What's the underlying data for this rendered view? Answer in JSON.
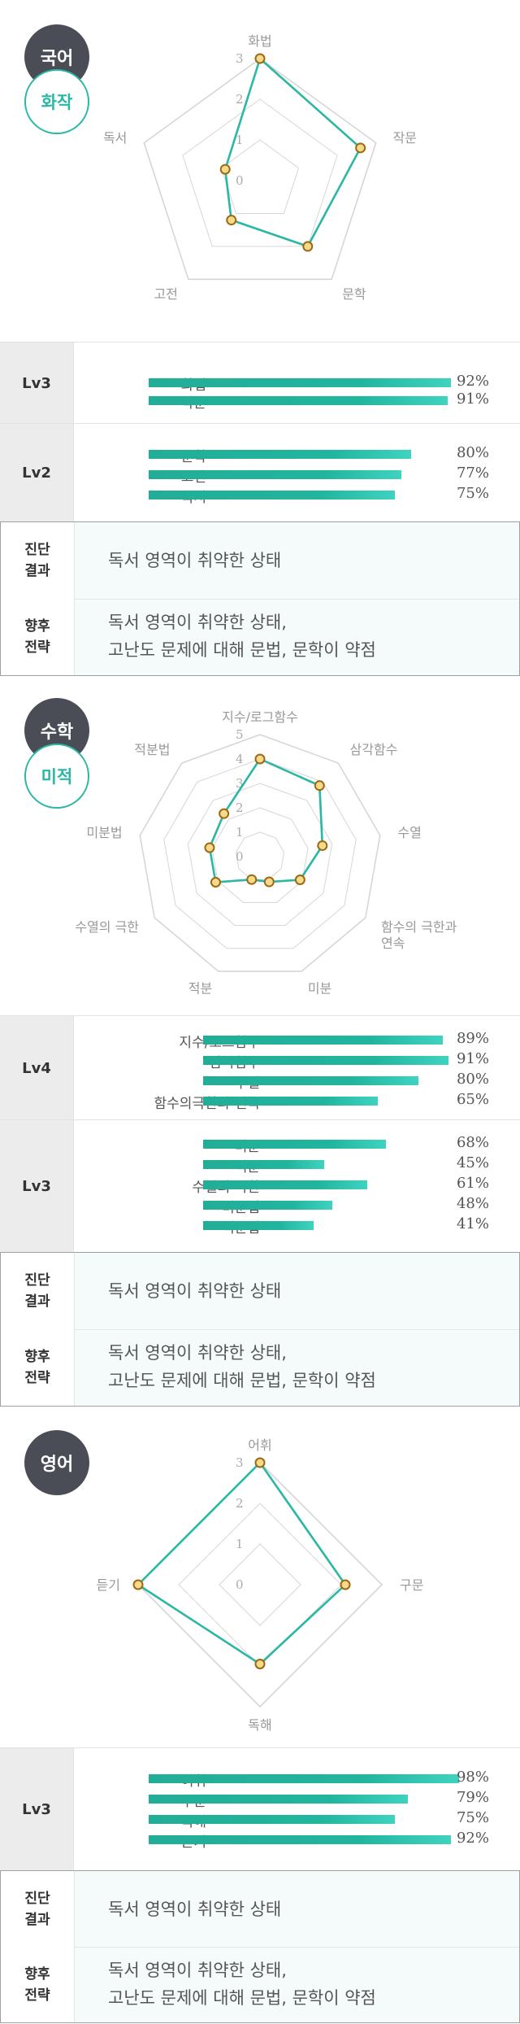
{
  "subjects": [
    {
      "name": "국어",
      "sub": "화작",
      "max": 3,
      "ticks": [
        "0",
        "1",
        "2",
        "3"
      ],
      "axes": [
        "화법",
        "작문",
        "문학",
        "고전",
        "독서"
      ],
      "values": [
        3,
        2.6,
        2.0,
        1.2,
        0.9
      ],
      "levels": [
        {
          "level": "Lv3",
          "items": [
            {
              "label": "화법",
              "pct": "92%",
              "value": 92
            },
            {
              "label": "작문",
              "pct": "91%",
              "value": 91
            }
          ]
        },
        {
          "level": "Lv2",
          "items": [
            {
              "label": "문학",
              "pct": "80%",
              "value": 80
            },
            {
              "label": "고전",
              "pct": "77%",
              "value": 77
            },
            {
              "label": "독서",
              "pct": "75%",
              "value": 75
            }
          ]
        }
      ],
      "diagnosis_head": [
        "진단",
        "결과"
      ],
      "diagnosis": "독서 영역이 취약한 상태",
      "strategy_head": [
        "향후",
        "전략"
      ],
      "strategy": [
        "독서 영역이 취약한 상태,",
        "고난도 문제에 대해 문법, 문학이 약점"
      ]
    },
    {
      "name": "수학",
      "sub": "미적",
      "max": 5,
      "ticks": [
        "0",
        "1",
        "2",
        "3",
        "4",
        "5"
      ],
      "axes": [
        "지수/로그함수",
        "삼각함수",
        "수열",
        "함수의 극한과\n연속",
        "미분",
        "적분",
        "수열의 극한",
        "미분법",
        "적분법"
      ],
      "values": [
        4.0,
        3.8,
        2.6,
        1.9,
        1.1,
        1.0,
        2.1,
        2.1,
        2.3
      ],
      "levels": [
        {
          "level": "Lv4",
          "items": [
            {
              "label": "지수/로그함수",
              "pct": "89%",
              "value": 89
            },
            {
              "label": "삼각함수",
              "pct": "91%",
              "value": 91
            },
            {
              "label": "수열",
              "pct": "80%",
              "value": 80
            },
            {
              "label": "함수의극한과 연속",
              "pct": "65%",
              "value": 65
            }
          ]
        },
        {
          "level": "Lv3",
          "items": [
            {
              "label": "미분",
              "pct": "68%",
              "value": 68
            },
            {
              "label": "적분",
              "pct": "45%",
              "value": 45
            },
            {
              "label": "수열의 극한",
              "pct": "61%",
              "value": 61
            },
            {
              "label": "미분법",
              "pct": "48%",
              "value": 48
            },
            {
              "label": "적분법",
              "pct": "41%",
              "value": 41
            }
          ]
        }
      ],
      "diagnosis_head": [
        "진단",
        "결과"
      ],
      "diagnosis": "독서 영역이 취약한 상태",
      "strategy_head": [
        "향후",
        "전략"
      ],
      "strategy": [
        "독서 영역이 취약한 상태,",
        "고난도 문제에 대해 문법, 문학이 약점"
      ]
    },
    {
      "name": "영어",
      "sub": "",
      "max": 3,
      "ticks": [
        "0",
        "1",
        "2",
        "3"
      ],
      "axes": [
        "어휘",
        "구문",
        "독해",
        "듣기"
      ],
      "values": [
        3,
        2.1,
        1.95,
        3
      ],
      "levels": [
        {
          "level": "Lv3",
          "items": [
            {
              "label": "어휘",
              "pct": "98%",
              "value": 98
            },
            {
              "label": "구문",
              "pct": "79%",
              "value": 79
            },
            {
              "label": "독해",
              "pct": "75%",
              "value": 75
            },
            {
              "label": "듣기",
              "pct": "92%",
              "value": 92
            }
          ]
        }
      ],
      "diagnosis_head": [
        "진단",
        "결과"
      ],
      "diagnosis": "독서 영역이 취약한 상태",
      "strategy_head": [
        "향후",
        "전략"
      ],
      "strategy": [
        "독서 영역이 취약한 상태,",
        "고난도 문제에 대해 문법, 문학이 약점"
      ]
    }
  ],
  "colors": {
    "accent": "#2ab7a3",
    "badge": "#4a4d55",
    "point_fill": "#f6d98b",
    "point_stroke": "#9a6a12",
    "grid": "#d6d6d6"
  }
}
